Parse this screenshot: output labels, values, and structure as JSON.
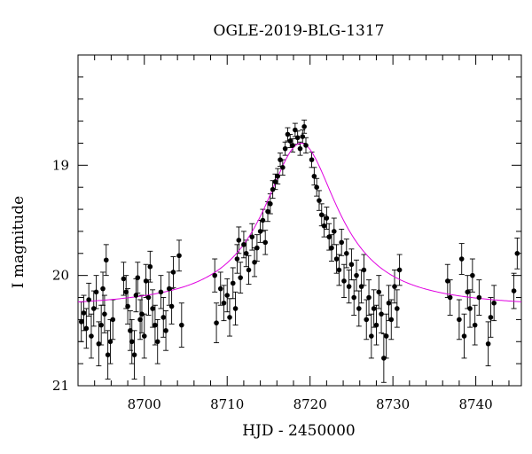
{
  "chart_data": {
    "type": "scatter",
    "title": "OGLE-2019-BLG-1317",
    "xlabel": "HJD - 2450000",
    "ylabel": "I magnitude",
    "xlim": [
      8692.0,
      8745.5
    ],
    "ylim": [
      21.0,
      18.0
    ],
    "y_inverted": true,
    "x_ticks": [
      8700,
      8710,
      8720,
      8730,
      8740
    ],
    "x_tick_labels": [
      "8700",
      "8710",
      "8720",
      "8730",
      "8740"
    ],
    "y_ticks": [
      19,
      20,
      21
    ],
    "y_tick_labels": [
      "19",
      "20",
      "21"
    ],
    "grid": false,
    "legend": "none",
    "model_color": "#e000e0",
    "point_color": "#000000",
    "series": [
      {
        "kind": "points_with_errorbars",
        "points": [
          [
            8692.4,
            20.42,
            0.18
          ],
          [
            8692.7,
            20.34,
            0.16
          ],
          [
            8693.0,
            20.48,
            0.18
          ],
          [
            8693.3,
            20.22,
            0.15
          ],
          [
            8693.6,
            20.55,
            0.2
          ],
          [
            8693.9,
            20.3,
            0.16
          ],
          [
            8694.2,
            20.15,
            0.15
          ],
          [
            8694.5,
            20.62,
            0.2
          ],
          [
            8694.8,
            20.45,
            0.18
          ],
          [
            8695.0,
            20.12,
            0.15
          ],
          [
            8695.2,
            20.35,
            0.17
          ],
          [
            8695.4,
            19.86,
            0.14
          ],
          [
            8695.6,
            20.72,
            0.22
          ],
          [
            8695.9,
            20.6,
            0.2
          ],
          [
            8696.2,
            20.4,
            0.18
          ],
          [
            8697.5,
            20.03,
            0.15
          ],
          [
            8697.8,
            20.15,
            0.15
          ],
          [
            8698.0,
            20.28,
            0.16
          ],
          [
            8698.3,
            20.5,
            0.18
          ],
          [
            8698.5,
            20.6,
            0.2
          ],
          [
            8698.8,
            20.72,
            0.22
          ],
          [
            8699.0,
            20.18,
            0.15
          ],
          [
            8699.2,
            20.02,
            0.14
          ],
          [
            8699.5,
            20.4,
            0.18
          ],
          [
            8699.7,
            20.35,
            0.17
          ],
          [
            8700.0,
            20.55,
            0.2
          ],
          [
            8700.2,
            20.05,
            0.15
          ],
          [
            8700.5,
            20.2,
            0.16
          ],
          [
            8700.7,
            19.92,
            0.14
          ],
          [
            8701.0,
            20.3,
            0.17
          ],
          [
            8701.3,
            20.45,
            0.18
          ],
          [
            8701.6,
            20.6,
            0.2
          ],
          [
            8702.0,
            20.15,
            0.15
          ],
          [
            8702.3,
            20.38,
            0.18
          ],
          [
            8702.6,
            20.5,
            0.18
          ],
          [
            8703.0,
            20.12,
            0.15
          ],
          [
            8703.3,
            20.28,
            0.16
          ],
          [
            8703.5,
            19.97,
            0.14
          ],
          [
            8704.2,
            19.82,
            0.14
          ],
          [
            8704.5,
            20.45,
            0.2
          ],
          [
            8708.5,
            20.0,
            0.15
          ],
          [
            8708.7,
            20.43,
            0.18
          ],
          [
            8709.2,
            20.12,
            0.15
          ],
          [
            8709.6,
            20.25,
            0.16
          ],
          [
            8710.0,
            20.18,
            0.15
          ],
          [
            8710.3,
            20.38,
            0.17
          ],
          [
            8710.7,
            20.07,
            0.14
          ],
          [
            8711.0,
            20.3,
            0.15
          ],
          [
            8711.2,
            19.85,
            0.13
          ],
          [
            8711.4,
            19.68,
            0.12
          ],
          [
            8711.6,
            20.02,
            0.14
          ],
          [
            8712.0,
            19.72,
            0.12
          ],
          [
            8712.3,
            19.8,
            0.12
          ],
          [
            8712.6,
            19.95,
            0.13
          ],
          [
            8713.0,
            19.65,
            0.12
          ],
          [
            8713.3,
            19.88,
            0.13
          ],
          [
            8713.6,
            19.75,
            0.12
          ],
          [
            8714.0,
            19.6,
            0.1
          ],
          [
            8714.3,
            19.5,
            0.1
          ],
          [
            8714.6,
            19.7,
            0.11
          ],
          [
            8714.9,
            19.42,
            0.09
          ],
          [
            8715.2,
            19.35,
            0.09
          ],
          [
            8715.5,
            19.22,
            0.08
          ],
          [
            8715.8,
            19.15,
            0.07
          ],
          [
            8716.1,
            19.1,
            0.07
          ],
          [
            8716.4,
            18.95,
            0.06
          ],
          [
            8716.7,
            19.02,
            0.07
          ],
          [
            8717.0,
            18.85,
            0.06
          ],
          [
            8717.3,
            18.72,
            0.06
          ],
          [
            8717.6,
            18.78,
            0.06
          ],
          [
            8717.9,
            18.82,
            0.06
          ],
          [
            8718.2,
            18.68,
            0.06
          ],
          [
            8718.5,
            18.75,
            0.06
          ],
          [
            8718.8,
            18.85,
            0.06
          ],
          [
            8719.1,
            18.74,
            0.06
          ],
          [
            8719.3,
            18.65,
            0.06
          ],
          [
            8719.5,
            18.82,
            0.07
          ],
          [
            8720.2,
            18.95,
            0.07
          ],
          [
            8720.5,
            19.1,
            0.08
          ],
          [
            8720.8,
            19.2,
            0.08
          ],
          [
            8721.1,
            19.32,
            0.09
          ],
          [
            8721.4,
            19.45,
            0.1
          ],
          [
            8721.7,
            19.55,
            0.1
          ],
          [
            8722.0,
            19.48,
            0.1
          ],
          [
            8722.3,
            19.65,
            0.12
          ],
          [
            8722.6,
            19.75,
            0.12
          ],
          [
            8722.9,
            19.6,
            0.12
          ],
          [
            8723.2,
            19.85,
            0.13
          ],
          [
            8723.5,
            19.95,
            0.14
          ],
          [
            8723.8,
            19.7,
            0.12
          ],
          [
            8724.1,
            20.05,
            0.15
          ],
          [
            8724.4,
            19.8,
            0.13
          ],
          [
            8724.7,
            20.1,
            0.15
          ],
          [
            8725.0,
            19.9,
            0.14
          ],
          [
            8725.3,
            20.2,
            0.16
          ],
          [
            8725.6,
            20.0,
            0.14
          ],
          [
            8725.9,
            20.3,
            0.16
          ],
          [
            8726.2,
            20.1,
            0.15
          ],
          [
            8726.5,
            19.95,
            0.14
          ],
          [
            8726.8,
            20.4,
            0.18
          ],
          [
            8727.1,
            20.2,
            0.16
          ],
          [
            8727.4,
            20.55,
            0.2
          ],
          [
            8727.7,
            20.3,
            0.17
          ],
          [
            8728.0,
            20.45,
            0.18
          ],
          [
            8728.3,
            20.15,
            0.15
          ],
          [
            8728.6,
            20.35,
            0.17
          ],
          [
            8728.9,
            20.75,
            0.22
          ],
          [
            8729.2,
            20.55,
            0.2
          ],
          [
            8729.5,
            20.25,
            0.16
          ],
          [
            8729.8,
            20.4,
            0.18
          ],
          [
            8730.2,
            20.1,
            0.15
          ],
          [
            8730.5,
            20.3,
            0.17
          ],
          [
            8730.8,
            19.95,
            0.14
          ],
          [
            8736.6,
            20.05,
            0.15
          ],
          [
            8736.9,
            20.2,
            0.16
          ],
          [
            8738.0,
            20.4,
            0.18
          ],
          [
            8738.3,
            19.85,
            0.14
          ],
          [
            8738.6,
            20.55,
            0.2
          ],
          [
            8739.0,
            20.15,
            0.15
          ],
          [
            8739.3,
            20.3,
            0.17
          ],
          [
            8739.6,
            20.0,
            0.15
          ],
          [
            8739.9,
            20.45,
            0.18
          ],
          [
            8740.4,
            20.2,
            0.16
          ],
          [
            8741.5,
            20.62,
            0.2
          ],
          [
            8741.8,
            20.38,
            0.18
          ],
          [
            8742.2,
            20.25,
            0.16
          ],
          [
            8744.6,
            20.14,
            0.16
          ],
          [
            8745.0,
            19.8,
            0.14
          ]
        ]
      },
      {
        "kind": "model_curve",
        "peak_hjd": 8718.9,
        "peak_mag": 18.8,
        "baseline_mag": 20.3,
        "tE": 5.5
      }
    ]
  }
}
